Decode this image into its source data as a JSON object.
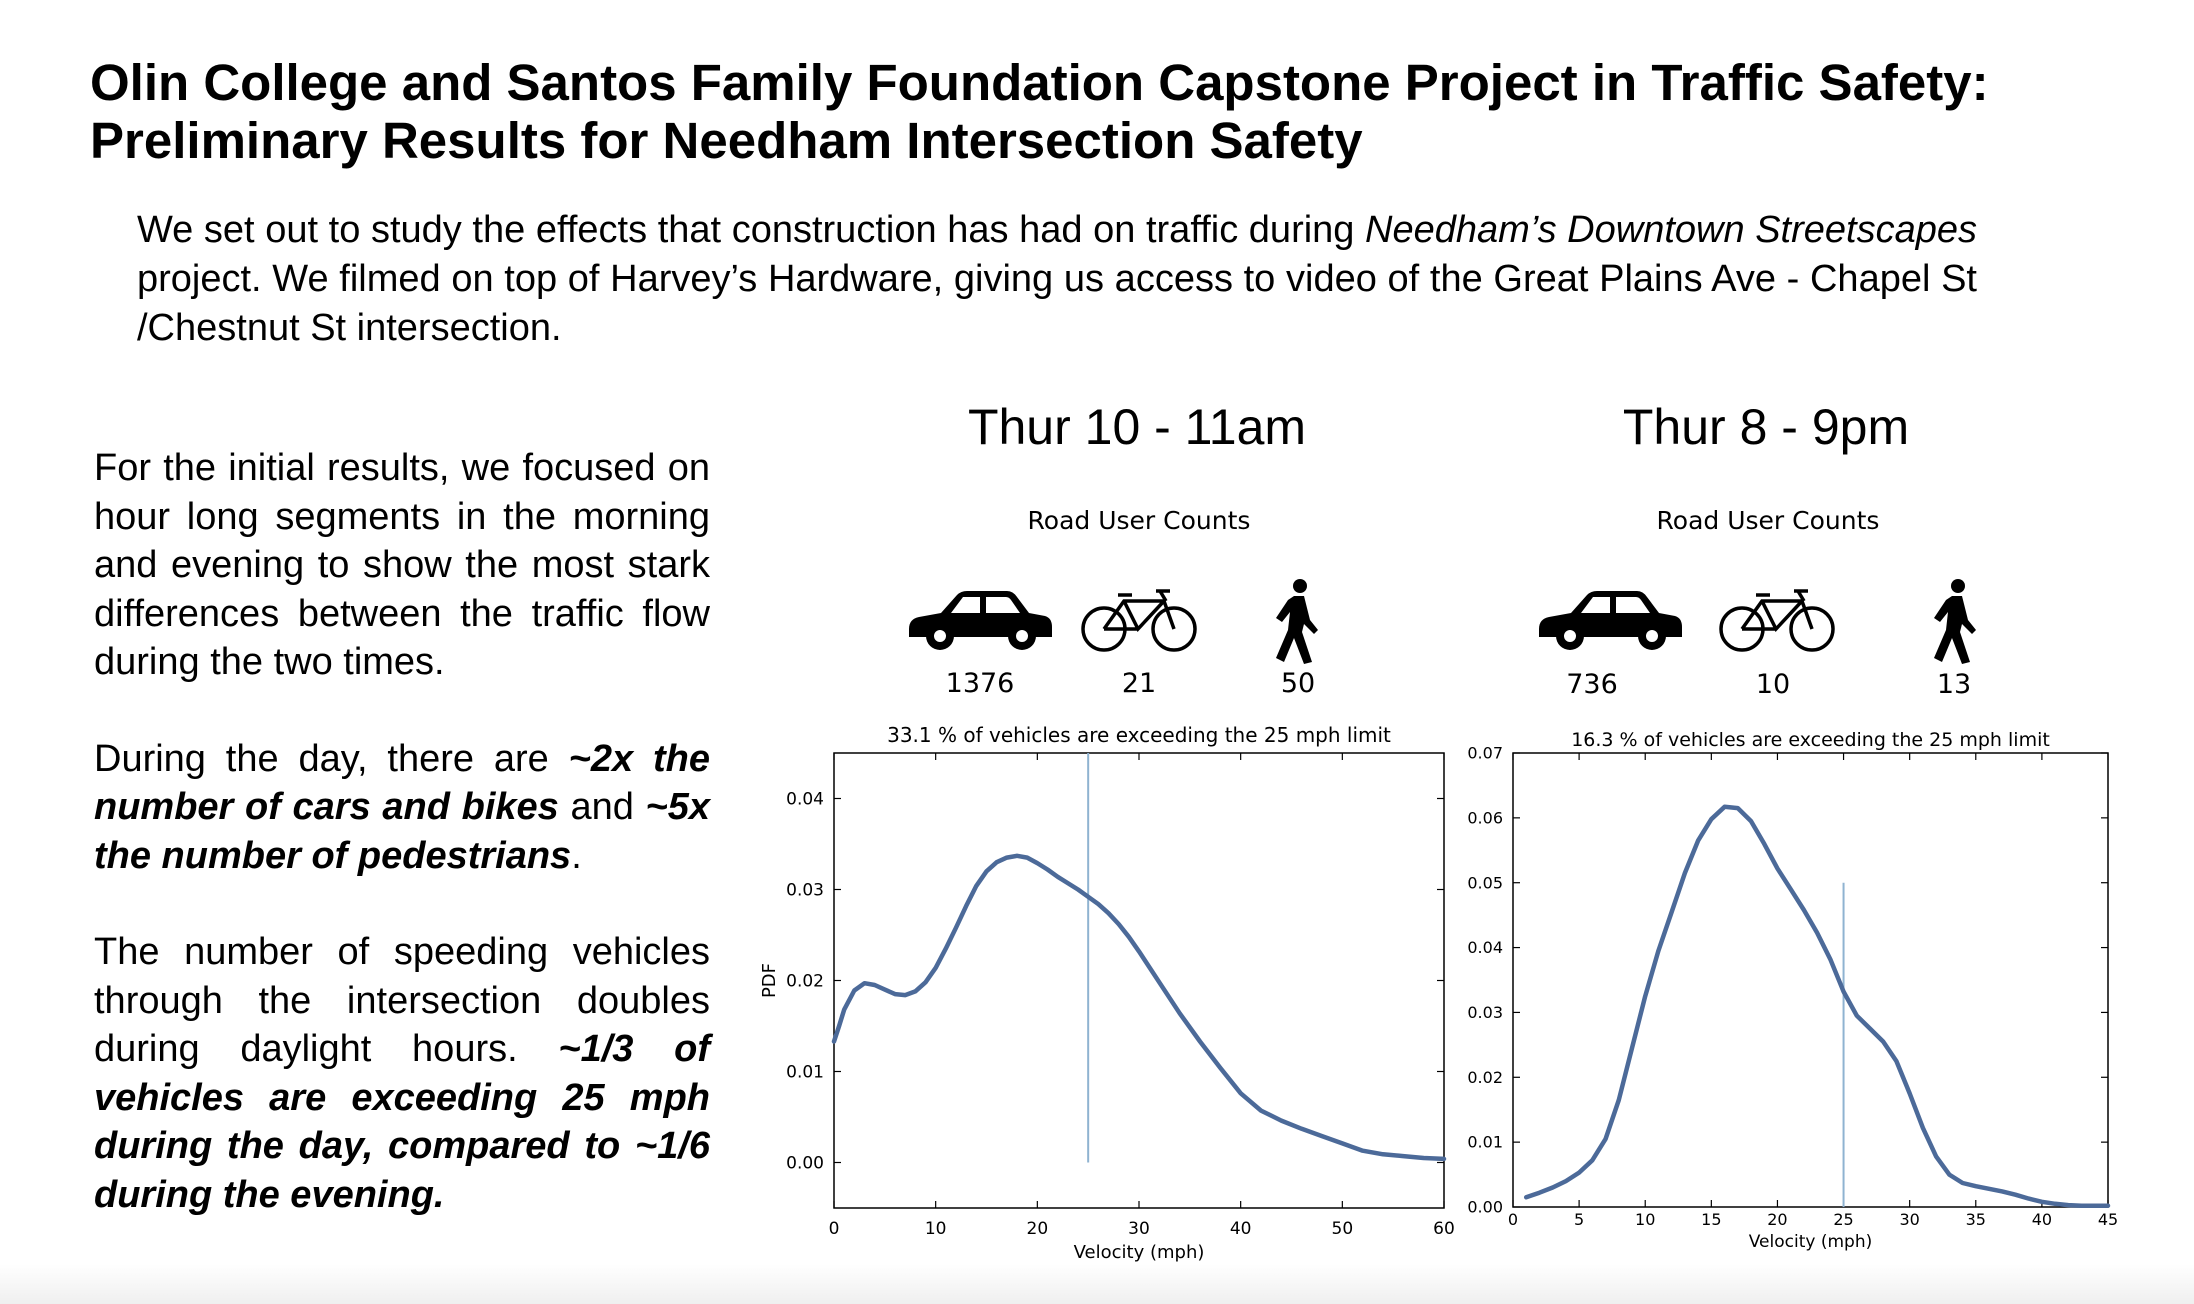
{
  "title_lines": [
    "Olin College and Santos Family Foundation Capstone Project in Traffic Safety:",
    "Preliminary Results for Needham Intersection Safety"
  ],
  "intro": {
    "part1": "We set out to study the effects that construction has had on traffic during ",
    "italic": "Needham’s Downtown Streetscapes",
    "part2": " project.  We filmed on top of Harvey’s Hardware, giving us access to video of the Great Plains Ave - Chapel St /Chestnut St intersection."
  },
  "left_text": {
    "p1": "For the initial results, we focused on hour long segments in the morning and evening to show the most stark differences between the traffic flow during the two times.",
    "p2_a": "During the day, there are ",
    "p2_b": "~2x the number of cars and bikes",
    "p2_c": " and ",
    "p2_d": "~5x the number of pedestrians",
    "p2_e": ".",
    "p3_a": "The number of speeding vehicles through the intersection doubles during daylight hours.  ",
    "p3_b": "~1/3 of vehicles are exceeding 25 mph during the day, compared to ~1/6 during the evening."
  },
  "panels": [
    {
      "time": "Thur 10 - 11am",
      "counts_label": "Road User Counts",
      "car_count": "1376",
      "bike_count": "21",
      "ped_count": "50"
    },
    {
      "time": "Thur 8 - 9pm",
      "counts_label": "Road User Counts",
      "car_count": "736",
      "bike_count": "10",
      "ped_count": "13"
    }
  ],
  "icons": [
    "car-icon",
    "bicycle-icon",
    "pedestrian-icon"
  ],
  "colors": {
    "curve": "#4c6a99",
    "limit_line": "#8fb3d1"
  },
  "chart_data": [
    {
      "type": "line",
      "title": "33.1 % of vehicles are exceeding the 25 mph limit",
      "xlabel": "Velocity (mph)",
      "ylabel": "PDF",
      "xlim": [
        0,
        60
      ],
      "ylim": [
        -0.005,
        0.045
      ],
      "xticks": [
        0,
        10,
        20,
        30,
        40,
        50,
        60
      ],
      "yticks": [
        0.0,
        0.01,
        0.02,
        0.03,
        0.04
      ],
      "ytick_labels": [
        "0.00",
        "0.01",
        "0.02",
        "0.03",
        "0.04"
      ],
      "limit_line": {
        "x": 25,
        "y_from": 0.0,
        "y_to": 0.045
      },
      "series": [
        {
          "x": [
            0,
            0.5,
            1,
            2,
            3,
            4,
            5,
            6,
            7,
            8,
            9,
            10,
            11,
            12,
            13,
            14,
            15,
            16,
            17,
            18,
            19,
            20,
            21,
            22,
            23,
            24,
            25,
            26,
            27,
            28,
            29,
            30,
            32,
            34,
            36,
            38,
            40,
            42,
            44,
            46,
            48,
            50,
            52,
            54,
            56,
            58,
            60
          ],
          "y": [
            0.0133,
            0.015,
            0.0168,
            0.0189,
            0.0197,
            0.0195,
            0.019,
            0.0185,
            0.0184,
            0.0188,
            0.0198,
            0.0214,
            0.0235,
            0.0258,
            0.0282,
            0.0304,
            0.032,
            0.033,
            0.0335,
            0.0337,
            0.0335,
            0.0329,
            0.0322,
            0.0314,
            0.0307,
            0.03,
            0.0292,
            0.0284,
            0.0274,
            0.0262,
            0.0248,
            0.0232,
            0.0198,
            0.0164,
            0.0133,
            0.0104,
            0.0076,
            0.0057,
            0.0046,
            0.0037,
            0.0029,
            0.0021,
            0.0013,
            0.0009,
            0.0007,
            0.0005,
            0.0004
          ]
        }
      ]
    },
    {
      "type": "line",
      "title": "16.3 % of vehicles are exceeding the 25 mph limit",
      "xlabel": "Velocity (mph)",
      "ylabel": "",
      "xlim": [
        0,
        45
      ],
      "ylim": [
        0,
        0.07
      ],
      "xticks": [
        0,
        5,
        10,
        15,
        20,
        25,
        30,
        35,
        40,
        45
      ],
      "yticks": [
        0.0,
        0.01,
        0.02,
        0.03,
        0.04,
        0.05,
        0.06,
        0.07
      ],
      "ytick_labels": [
        "0.00",
        "0.01",
        "0.02",
        "0.03",
        "0.04",
        "0.05",
        "0.06",
        "0.07"
      ],
      "limit_line": {
        "x": 25,
        "y_from": 0.0,
        "y_to": 0.05
      },
      "series": [
        {
          "x": [
            1,
            2,
            3,
            4,
            5,
            6,
            7,
            8,
            9,
            10,
            11,
            12,
            13,
            14,
            15,
            16,
            17,
            18,
            19,
            20,
            21,
            22,
            23,
            24,
            25,
            26,
            27,
            28,
            29,
            30,
            31,
            32,
            33,
            34,
            35,
            36,
            37,
            38,
            39,
            40,
            41,
            42,
            43,
            44,
            45
          ],
          "y": [
            0.0015,
            0.0022,
            0.003,
            0.004,
            0.0053,
            0.0072,
            0.0105,
            0.0165,
            0.0245,
            0.0325,
            0.0395,
            0.0455,
            0.0515,
            0.0565,
            0.0598,
            0.0617,
            0.0615,
            0.0595,
            0.056,
            0.0522,
            0.049,
            0.0458,
            0.0423,
            0.0382,
            0.0332,
            0.0295,
            0.0275,
            0.0255,
            0.0225,
            0.0175,
            0.0122,
            0.0078,
            0.005,
            0.0037,
            0.0032,
            0.0028,
            0.0024,
            0.0019,
            0.0013,
            0.0008,
            0.0005,
            0.0003,
            0.0002,
            0.0002,
            0.0002
          ]
        }
      ]
    }
  ]
}
